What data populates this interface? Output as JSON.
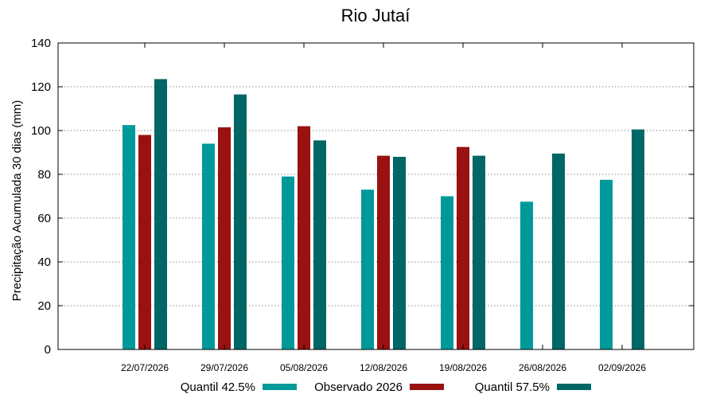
{
  "chart_data": {
    "type": "bar",
    "title": "Rio Jutaí",
    "xlabel": "",
    "ylabel": "Precipitação Acumulada 30 dias (mm)",
    "ylim": [
      0,
      140
    ],
    "yticks": [
      0,
      20,
      40,
      60,
      80,
      100,
      120,
      140
    ],
    "grid": true,
    "legend_position": "bottom",
    "categories": [
      "22/07/2026",
      "29/07/2026",
      "05/08/2026",
      "12/08/2026",
      "19/08/2026",
      "26/08/2026",
      "02/09/2026"
    ],
    "series": [
      {
        "name": "Quantil 42.5%",
        "color": "#009999",
        "values": [
          102.5,
          94,
          79,
          73,
          70,
          67.5,
          77.5
        ]
      },
      {
        "name": "Observado 2026",
        "color": "#991111",
        "values": [
          98,
          101.5,
          102,
          88.5,
          92.5,
          null,
          null
        ]
      },
      {
        "name": "Quantil 57.5%",
        "color": "#006666",
        "values": [
          123.5,
          116.5,
          95.5,
          88,
          88.5,
          89.5,
          100.5
        ]
      }
    ]
  }
}
